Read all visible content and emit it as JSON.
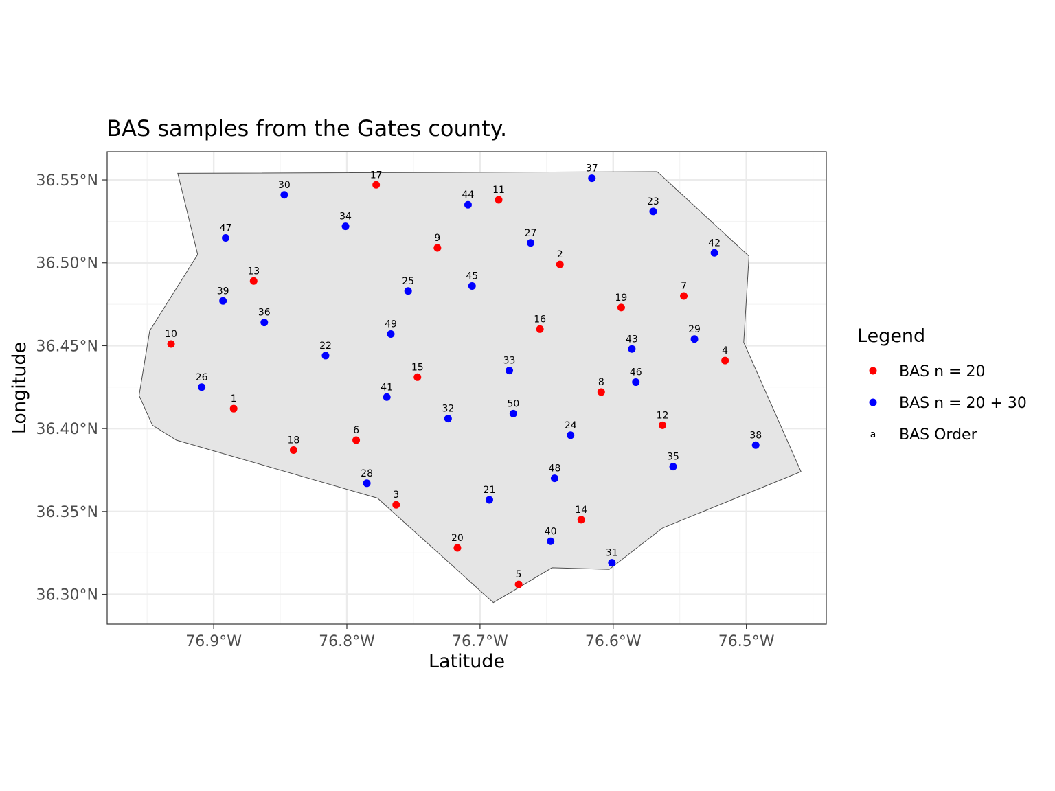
{
  "chart_data": {
    "type": "scatter",
    "title": "BAS samples from the Gates county.",
    "xlabel": "Latitude",
    "ylabel": "Longitude",
    "xlim": [
      -76.98,
      -76.44
    ],
    "ylim": [
      36.282,
      36.567
    ],
    "x_ticks": [
      -76.9,
      -76.8,
      -76.7,
      -76.6,
      -76.5
    ],
    "x_tick_labels": [
      "76.9°W",
      "76.8°W",
      "76.7°W",
      "76.6°W",
      "76.5°W"
    ],
    "y_ticks": [
      36.3,
      36.35,
      36.4,
      36.45,
      36.5,
      36.55
    ],
    "y_tick_labels": [
      "36.30°N",
      "36.35°N",
      "36.40°N",
      "36.45°N",
      "36.50°N",
      "36.55°N"
    ],
    "grid": true,
    "county_outline": [
      [
        -76.927,
        36.554
      ],
      [
        -76.567,
        36.555
      ],
      [
        -76.498,
        36.504
      ],
      [
        -76.502,
        36.452
      ],
      [
        -76.459,
        36.374
      ],
      [
        -76.563,
        36.34
      ],
      [
        -76.603,
        36.315
      ],
      [
        -76.646,
        36.316
      ],
      [
        -76.69,
        36.295
      ],
      [
        -76.777,
        36.358
      ],
      [
        -76.928,
        36.393
      ],
      [
        -76.946,
        36.402
      ],
      [
        -76.956,
        36.42
      ],
      [
        -76.948,
        36.459
      ],
      [
        -76.912,
        36.505
      ]
    ],
    "series": [
      {
        "name": "BAS n = 20",
        "color": "#ff0000",
        "points": [
          {
            "label": "1",
            "x": -76.885,
            "y": 36.412
          },
          {
            "label": "2",
            "x": -76.64,
            "y": 36.499
          },
          {
            "label": "3",
            "x": -76.763,
            "y": 36.354
          },
          {
            "label": "4",
            "x": -76.516,
            "y": 36.441
          },
          {
            "label": "5",
            "x": -76.671,
            "y": 36.306
          },
          {
            "label": "6",
            "x": -76.793,
            "y": 36.393
          },
          {
            "label": "7",
            "x": -76.547,
            "y": 36.48
          },
          {
            "label": "8",
            "x": -76.609,
            "y": 36.422
          },
          {
            "label": "9",
            "x": -76.732,
            "y": 36.509
          },
          {
            "label": "10",
            "x": -76.932,
            "y": 36.451
          },
          {
            "label": "11",
            "x": -76.686,
            "y": 36.538
          },
          {
            "label": "12",
            "x": -76.563,
            "y": 36.402
          },
          {
            "label": "13",
            "x": -76.87,
            "y": 36.489
          },
          {
            "label": "14",
            "x": -76.624,
            "y": 36.345
          },
          {
            "label": "15",
            "x": -76.747,
            "y": 36.431
          },
          {
            "label": "16",
            "x": -76.655,
            "y": 36.46
          },
          {
            "label": "17",
            "x": -76.778,
            "y": 36.547
          },
          {
            "label": "18",
            "x": -76.84,
            "y": 36.387
          },
          {
            "label": "19",
            "x": -76.594,
            "y": 36.473
          },
          {
            "label": "20",
            "x": -76.717,
            "y": 36.328
          }
        ]
      },
      {
        "name": "BAS n = 20 + 30",
        "color": "#0000ff",
        "points": [
          {
            "label": "21",
            "x": -76.693,
            "y": 36.357
          },
          {
            "label": "22",
            "x": -76.816,
            "y": 36.444
          },
          {
            "label": "23",
            "x": -76.57,
            "y": 36.531
          },
          {
            "label": "24",
            "x": -76.632,
            "y": 36.396
          },
          {
            "label": "25",
            "x": -76.754,
            "y": 36.483
          },
          {
            "label": "26",
            "x": -76.909,
            "y": 36.425
          },
          {
            "label": "27",
            "x": -76.662,
            "y": 36.512
          },
          {
            "label": "28",
            "x": -76.785,
            "y": 36.367
          },
          {
            "label": "29",
            "x": -76.539,
            "y": 36.454
          },
          {
            "label": "30",
            "x": -76.847,
            "y": 36.541
          },
          {
            "label": "31",
            "x": -76.601,
            "y": 36.319
          },
          {
            "label": "32",
            "x": -76.724,
            "y": 36.406
          },
          {
            "label": "33",
            "x": -76.678,
            "y": 36.435
          },
          {
            "label": "34",
            "x": -76.801,
            "y": 36.522
          },
          {
            "label": "35",
            "x": -76.555,
            "y": 36.377
          },
          {
            "label": "36",
            "x": -76.862,
            "y": 36.464
          },
          {
            "label": "37",
            "x": -76.616,
            "y": 36.551
          },
          {
            "label": "38",
            "x": -76.493,
            "y": 36.39
          },
          {
            "label": "39",
            "x": -76.893,
            "y": 36.477
          },
          {
            "label": "40",
            "x": -76.647,
            "y": 36.332
          },
          {
            "label": "41",
            "x": -76.77,
            "y": 36.419
          },
          {
            "label": "42",
            "x": -76.524,
            "y": 36.506
          },
          {
            "label": "43",
            "x": -76.586,
            "y": 36.448
          },
          {
            "label": "44",
            "x": -76.709,
            "y": 36.535
          },
          {
            "label": "45",
            "x": -76.706,
            "y": 36.486
          },
          {
            "label": "46",
            "x": -76.583,
            "y": 36.428
          },
          {
            "label": "47",
            "x": -76.891,
            "y": 36.515
          },
          {
            "label": "48",
            "x": -76.644,
            "y": 36.37
          },
          {
            "label": "49",
            "x": -76.767,
            "y": 36.457
          },
          {
            "label": "50",
            "x": -76.675,
            "y": 36.409
          }
        ]
      }
    ],
    "legend": {
      "title": "Legend",
      "position": "right",
      "items": [
        {
          "label": "BAS n = 20",
          "color": "#ff0000",
          "key": "point"
        },
        {
          "label": "BAS n = 20 + 30",
          "color": "#0000ff",
          "key": "point"
        },
        {
          "label": "BAS Order",
          "key": "text",
          "key_text": "a"
        }
      ]
    }
  }
}
